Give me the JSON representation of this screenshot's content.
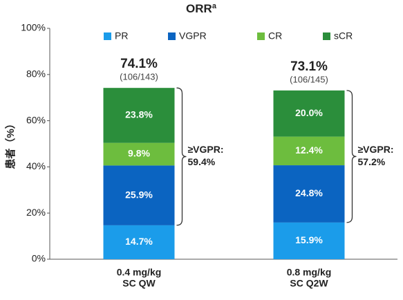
{
  "chart_data": {
    "type": "stacked_bar",
    "title": "ORR",
    "title_sup": "a",
    "y_label": "患者（%）",
    "categories": [
      [
        "0.4 mg/kg",
        "SC QW"
      ],
      [
        "0.8 mg/kg",
        "SC Q2W"
      ]
    ],
    "series": [
      {
        "name": "PR",
        "color": "#1b9cea",
        "values": [
          14.7,
          15.9
        ],
        "value_labels": [
          "14.7%",
          "15.9%"
        ]
      },
      {
        "name": "VGPR",
        "color": "#0b64c1",
        "values": [
          25.9,
          24.8
        ],
        "value_labels": [
          "25.9%",
          "24.8%"
        ]
      },
      {
        "name": "CR",
        "color": "#6dbd3e",
        "values": [
          9.8,
          12.4
        ],
        "value_labels": [
          "9.8%",
          "12.4%"
        ]
      },
      {
        "name": "sCR",
        "color": "#2b8e3b",
        "values": [
          23.8,
          20.0
        ],
        "value_labels": [
          "23.8%",
          "20.0%"
        ]
      }
    ],
    "total_labels": [
      "74.1%",
      "73.1%"
    ],
    "total_counts": [
      "(106/143)",
      "(106/145)"
    ],
    "bracket_label": "≥VGPR:",
    "bracket_values": [
      "59.4%",
      "57.2%"
    ],
    "ylim": [
      0,
      100
    ],
    "yticks": [
      {
        "value": 0,
        "label": "0%"
      },
      {
        "value": 20,
        "label": "20%"
      },
      {
        "value": 40,
        "label": "40%"
      },
      {
        "value": 60,
        "label": "60%"
      },
      {
        "value": 80,
        "label": "80%"
      },
      {
        "value": 100,
        "label": "100%"
      }
    ]
  }
}
